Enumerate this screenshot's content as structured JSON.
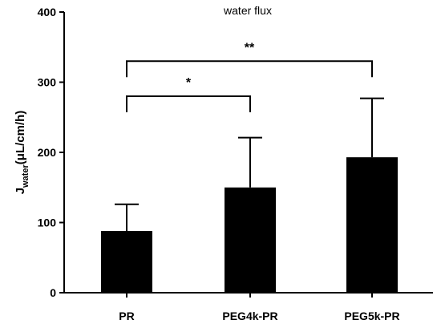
{
  "chart_data": {
    "type": "bar",
    "title": "water flux",
    "ylabel": {
      "main": "J",
      "subscript": "water",
      "unit": "(μL/cm/h)"
    },
    "xlabel": "",
    "categories": [
      "PR",
      "PEG4k-PR",
      "PEG5k-PR"
    ],
    "values": [
      88,
      150,
      193
    ],
    "error_upper": [
      38,
      71,
      84
    ],
    "ylim": [
      0,
      400
    ],
    "yticks": [
      0,
      100,
      200,
      300,
      400
    ],
    "bar_color": "#000000",
    "grid": false,
    "legend": "none",
    "significance": [
      {
        "from": 0,
        "to": 1,
        "y": 280,
        "label": "*"
      },
      {
        "from": 0,
        "to": 2,
        "y": 330,
        "label": "**"
      }
    ]
  }
}
